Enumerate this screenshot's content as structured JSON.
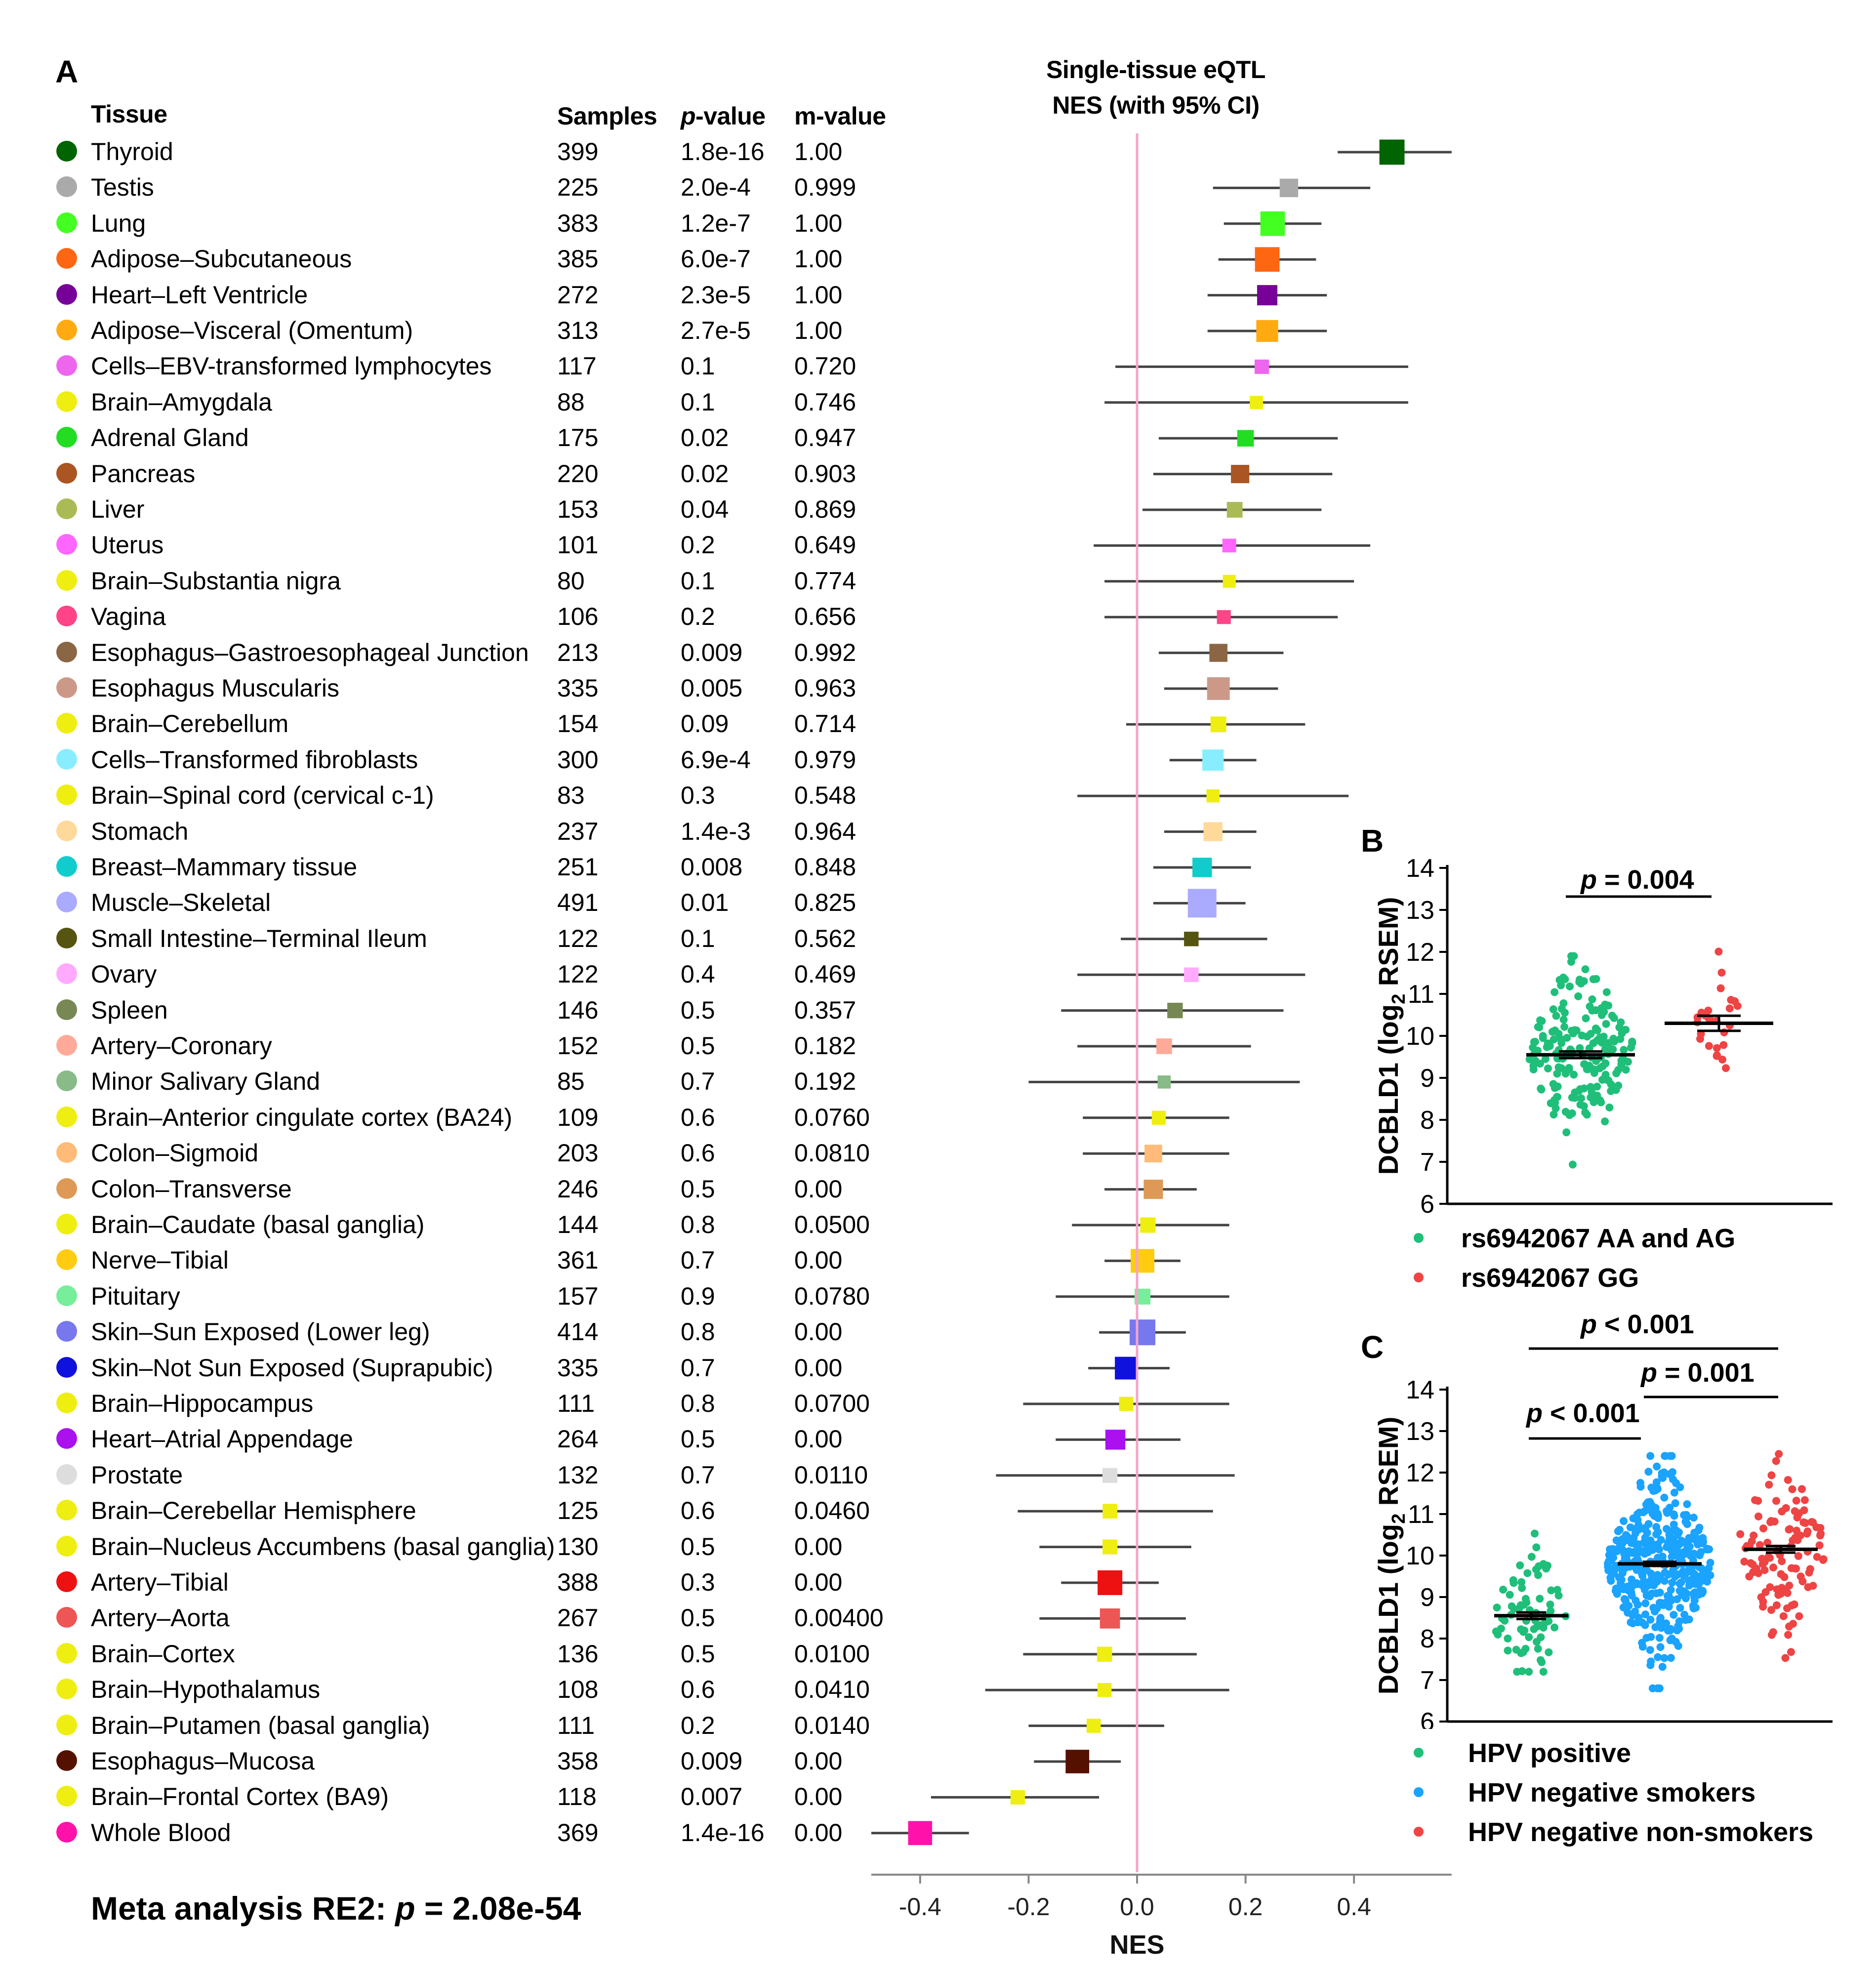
{
  "panelA": {
    "letter": "A",
    "headers": {
      "tissue": "Tissue",
      "samples": "Samples",
      "pvalue_italic": "p",
      "pvalue_rest": "-value",
      "mvalue": "m-value"
    },
    "plot_title_line1": "Single-tissue eQTL",
    "plot_title_line2": "NES (with 95% CI)",
    "meta_prefix": "Meta analysis RE2: ",
    "meta_p": "p",
    "meta_suffix": " = 2.08e-54"
  },
  "panelB": {
    "letter": "B",
    "p_italic": "p",
    "p_text": " = 0.004",
    "legend": [
      {
        "label": "rs6942067 AA and AG",
        "color": "#1fbf7a"
      },
      {
        "label": "rs6942067 GG",
        "color": "#ee4444"
      }
    ]
  },
  "panelC": {
    "letter": "C",
    "comparisons": [
      {
        "p": "p",
        "text": " < 0.001"
      },
      {
        "p": "p",
        "text": " = 0.001"
      },
      {
        "p": "p",
        "text": " < 0.001"
      }
    ],
    "legend": [
      {
        "label": "HPV positive",
        "color": "#1fbf7a"
      },
      {
        "label": "HPV negative smokers",
        "color": "#1aa3ff"
      },
      {
        "label": "HPV negative non-smokers",
        "color": "#ee4444"
      }
    ]
  },
  "chart_data": [
    {
      "type": "forest",
      "title": "Single-tissue eQTL NES (with 95% CI)",
      "xlabel": "NES",
      "xlim": [
        -0.49,
        0.58
      ],
      "xticks": [
        -0.4,
        -0.2,
        0.0,
        0.2,
        0.4
      ],
      "xtick_labels": [
        "-0.4",
        "-0.2",
        "0.0",
        "0.2",
        "0.4"
      ],
      "reference_line": 0.0,
      "rows": [
        {
          "tissue": "Thyroid",
          "samples": "399",
          "p": "1.8e-16",
          "m": "1.00",
          "color": "#006400",
          "nes": 0.47,
          "lo": 0.37,
          "hi": 0.58
        },
        {
          "tissue": "Testis",
          "samples": "225",
          "p": "2.0e-4",
          "m": "0.999",
          "color": "#aaaaaa",
          "nes": 0.28,
          "lo": 0.14,
          "hi": 0.43
        },
        {
          "tissue": "Lung",
          "samples": "383",
          "p": "1.2e-7",
          "m": "1.00",
          "color": "#44ff22",
          "nes": 0.25,
          "lo": 0.16,
          "hi": 0.34
        },
        {
          "tissue": "Adipose–Subcutaneous",
          "samples": "385",
          "p": "6.0e-7",
          "m": "1.00",
          "color": "#ff6611",
          "nes": 0.24,
          "lo": 0.15,
          "hi": 0.33
        },
        {
          "tissue": "Heart–Left Ventricle",
          "samples": "272",
          "p": "2.3e-5",
          "m": "1.00",
          "color": "#770099",
          "nes": 0.24,
          "lo": 0.13,
          "hi": 0.35
        },
        {
          "tissue": "Adipose–Visceral (Omentum)",
          "samples": "313",
          "p": "2.7e-5",
          "m": "1.00",
          "color": "#ffaa11",
          "nes": 0.24,
          "lo": 0.13,
          "hi": 0.35
        },
        {
          "tissue": "Cells–EBV-transformed lymphocytes",
          "samples": "117",
          "p": "0.1",
          "m": "0.720",
          "color": "#ee66ee",
          "nes": 0.23,
          "lo": -0.04,
          "hi": 0.5
        },
        {
          "tissue": "Brain–Amygdala",
          "samples": "88",
          "p": "0.1",
          "m": "0.746",
          "color": "#eeee11",
          "nes": 0.22,
          "lo": -0.06,
          "hi": 0.5
        },
        {
          "tissue": "Adrenal Gland",
          "samples": "175",
          "p": "0.02",
          "m": "0.947",
          "color": "#22dd22",
          "nes": 0.2,
          "lo": 0.04,
          "hi": 0.37
        },
        {
          "tissue": "Pancreas",
          "samples": "220",
          "p": "0.02",
          "m": "0.903",
          "color": "#aa5522",
          "nes": 0.19,
          "lo": 0.03,
          "hi": 0.36
        },
        {
          "tissue": "Liver",
          "samples": "153",
          "p": "0.04",
          "m": "0.869",
          "color": "#aabb55",
          "nes": 0.18,
          "lo": 0.01,
          "hi": 0.34
        },
        {
          "tissue": "Uterus",
          "samples": "101",
          "p": "0.2",
          "m": "0.649",
          "color": "#ff66ff",
          "nes": 0.17,
          "lo": -0.08,
          "hi": 0.43
        },
        {
          "tissue": "Brain–Substantia nigra",
          "samples": "80",
          "p": "0.1",
          "m": "0.774",
          "color": "#eeee11",
          "nes": 0.17,
          "lo": -0.06,
          "hi": 0.4
        },
        {
          "tissue": "Vagina",
          "samples": "106",
          "p": "0.2",
          "m": "0.656",
          "color": "#ff4488",
          "nes": 0.16,
          "lo": -0.06,
          "hi": 0.37
        },
        {
          "tissue": "Esophagus–Gastroesophageal Junction",
          "samples": "213",
          "p": "0.009",
          "m": "0.992",
          "color": "#8b6644",
          "nes": 0.15,
          "lo": 0.04,
          "hi": 0.27
        },
        {
          "tissue": "Esophagus Muscularis",
          "samples": "335",
          "p": "0.005",
          "m": "0.963",
          "color": "#cc9988",
          "nes": 0.15,
          "lo": 0.05,
          "hi": 0.26
        },
        {
          "tissue": "Brain–Cerebellum",
          "samples": "154",
          "p": "0.09",
          "m": "0.714",
          "color": "#eeee11",
          "nes": 0.15,
          "lo": -0.02,
          "hi": 0.31
        },
        {
          "tissue": "Cells–Transformed fibroblasts",
          "samples": "300",
          "p": "6.9e-4",
          "m": "0.979",
          "color": "#88eeff",
          "nes": 0.14,
          "lo": 0.06,
          "hi": 0.22
        },
        {
          "tissue": "Brain–Spinal cord (cervical c-1)",
          "samples": "83",
          "p": "0.3",
          "m": "0.548",
          "color": "#eeee11",
          "nes": 0.14,
          "lo": -0.11,
          "hi": 0.39
        },
        {
          "tissue": "Stomach",
          "samples": "237",
          "p": "1.4e-3",
          "m": "0.964",
          "color": "#ffd99a",
          "nes": 0.14,
          "lo": 0.05,
          "hi": 0.22
        },
        {
          "tissue": "Breast–Mammary tissue",
          "samples": "251",
          "p": "0.008",
          "m": "0.848",
          "color": "#11cccc",
          "nes": 0.12,
          "lo": 0.03,
          "hi": 0.21
        },
        {
          "tissue": "Muscle–Skeletal",
          "samples": "491",
          "p": "0.01",
          "m": "0.825",
          "color": "#aaaaff",
          "nes": 0.12,
          "lo": 0.03,
          "hi": 0.2
        },
        {
          "tissue": "Small Intestine–Terminal Ileum",
          "samples": "122",
          "p": "0.1",
          "m": "0.562",
          "color": "#555511",
          "nes": 0.1,
          "lo": -0.03,
          "hi": 0.24
        },
        {
          "tissue": "Ovary",
          "samples": "122",
          "p": "0.4",
          "m": "0.469",
          "color": "#ffaaff",
          "nes": 0.1,
          "lo": -0.11,
          "hi": 0.31
        },
        {
          "tissue": "Spleen",
          "samples": "146",
          "p": "0.5",
          "m": "0.357",
          "color": "#778855",
          "nes": 0.07,
          "lo": -0.14,
          "hi": 0.27
        },
        {
          "tissue": "Artery–Coronary",
          "samples": "152",
          "p": "0.5",
          "m": "0.182",
          "color": "#ffaa99",
          "nes": 0.05,
          "lo": -0.11,
          "hi": 0.21
        },
        {
          "tissue": "Minor Salivary Gland",
          "samples": "85",
          "p": "0.7",
          "m": "0.192",
          "color": "#88bb88",
          "nes": 0.05,
          "lo": -0.2,
          "hi": 0.3
        },
        {
          "tissue": "Brain–Anterior cingulate cortex (BA24)",
          "samples": "109",
          "p": "0.6",
          "m": "0.0760",
          "color": "#eeee11",
          "nes": 0.04,
          "lo": -0.1,
          "hi": 0.17
        },
        {
          "tissue": "Colon–Sigmoid",
          "samples": "203",
          "p": "0.6",
          "m": "0.0810",
          "color": "#ffbb77",
          "nes": 0.03,
          "lo": -0.1,
          "hi": 0.17
        },
        {
          "tissue": "Colon–Transverse",
          "samples": "246",
          "p": "0.5",
          "m": "0.00",
          "color": "#dd9955",
          "nes": 0.03,
          "lo": -0.06,
          "hi": 0.11
        },
        {
          "tissue": "Brain–Caudate (basal ganglia)",
          "samples": "144",
          "p": "0.8",
          "m": "0.0500",
          "color": "#eeee11",
          "nes": 0.02,
          "lo": -0.12,
          "hi": 0.17
        },
        {
          "tissue": "Nerve–Tibial",
          "samples": "361",
          "p": "0.7",
          "m": "0.00",
          "color": "#ffcc11",
          "nes": 0.01,
          "lo": -0.06,
          "hi": 0.08
        },
        {
          "tissue": "Pituitary",
          "samples": "157",
          "p": "0.9",
          "m": "0.0780",
          "color": "#77ee99",
          "nes": 0.01,
          "lo": -0.15,
          "hi": 0.17
        },
        {
          "tissue": "Skin–Sun Exposed (Lower leg)",
          "samples": "414",
          "p": "0.8",
          "m": "0.00",
          "color": "#7777ee",
          "nes": 0.01,
          "lo": -0.07,
          "hi": 0.09
        },
        {
          "tissue": "Skin–Not Sun Exposed (Suprapubic)",
          "samples": "335",
          "p": "0.7",
          "m": "0.00",
          "color": "#1111dd",
          "nes": -0.02,
          "lo": -0.09,
          "hi": 0.06
        },
        {
          "tissue": "Brain–Hippocampus",
          "samples": "111",
          "p": "0.8",
          "m": "0.0700",
          "color": "#eeee11",
          "nes": -0.02,
          "lo": -0.21,
          "hi": 0.17
        },
        {
          "tissue": "Heart–Atrial Appendage",
          "samples": "264",
          "p": "0.5",
          "m": "0.00",
          "color": "#aa11ee",
          "nes": -0.04,
          "lo": -0.15,
          "hi": 0.08
        },
        {
          "tissue": "Prostate",
          "samples": "132",
          "p": "0.7",
          "m": "0.0110",
          "color": "#dddddd",
          "nes": -0.05,
          "lo": -0.26,
          "hi": 0.18
        },
        {
          "tissue": "Brain–Cerebellar Hemisphere",
          "samples": "125",
          "p": "0.6",
          "m": "0.0460",
          "color": "#eeee11",
          "nes": -0.05,
          "lo": -0.22,
          "hi": 0.14
        },
        {
          "tissue": "Brain–Nucleus Accumbens (basal ganglia)",
          "samples": "130",
          "p": "0.5",
          "m": "0.00",
          "color": "#eeee11",
          "nes": -0.05,
          "lo": -0.18,
          "hi": 0.1
        },
        {
          "tissue": "Artery–Tibial",
          "samples": "388",
          "p": "0.3",
          "m": "0.00",
          "color": "#ee1111",
          "nes": -0.05,
          "lo": -0.14,
          "hi": 0.04
        },
        {
          "tissue": "Artery–Aorta",
          "samples": "267",
          "p": "0.5",
          "m": "0.00400",
          "color": "#ee5555",
          "nes": -0.05,
          "lo": -0.18,
          "hi": 0.09
        },
        {
          "tissue": "Brain–Cortex",
          "samples": "136",
          "p": "0.5",
          "m": "0.0100",
          "color": "#eeee11",
          "nes": -0.06,
          "lo": -0.21,
          "hi": 0.11
        },
        {
          "tissue": "Brain–Hypothalamus",
          "samples": "108",
          "p": "0.6",
          "m": "0.0410",
          "color": "#eeee11",
          "nes": -0.06,
          "lo": -0.28,
          "hi": 0.17
        },
        {
          "tissue": "Brain–Putamen (basal ganglia)",
          "samples": "111",
          "p": "0.2",
          "m": "0.0140",
          "color": "#eeee11",
          "nes": -0.08,
          "lo": -0.2,
          "hi": 0.05
        },
        {
          "tissue": "Esophagus–Mucosa",
          "samples": "358",
          "p": "0.009",
          "m": "0.00",
          "color": "#551100",
          "nes": -0.11,
          "lo": -0.19,
          "hi": -0.03
        },
        {
          "tissue": "Brain–Frontal Cortex (BA9)",
          "samples": "118",
          "p": "0.007",
          "m": "0.00",
          "color": "#eeee11",
          "nes": -0.22,
          "lo": -0.38,
          "hi": -0.07
        },
        {
          "tissue": "Whole Blood",
          "samples": "369",
          "p": "1.4e-16",
          "m": "0.00",
          "color": "#ff11aa",
          "nes": -0.4,
          "lo": -0.49,
          "hi": -0.31
        }
      ]
    },
    {
      "type": "scatter",
      "panel": "B",
      "ylabel": "DCBLD1 (log2 RSEM)",
      "ylim": [
        6,
        14
      ],
      "yticks": [
        6,
        7,
        8,
        9,
        10,
        11,
        12,
        13,
        14
      ],
      "groups": [
        {
          "name": "rs6942067 AA and AG",
          "color": "#1fbf7a",
          "mean": 9.55,
          "sem": 0.08,
          "min": 6.8,
          "max": 11.9,
          "n": 190
        },
        {
          "name": "rs6942067 GG",
          "color": "#ee4444",
          "mean": 10.3,
          "sem": 0.18,
          "min": 8.9,
          "max": 12.4,
          "n": 26
        }
      ],
      "annotation": "p = 0.004"
    },
    {
      "type": "scatter",
      "panel": "C",
      "ylabel": "DCBLD1 (log2 RSEM)",
      "ylim": [
        6,
        14
      ],
      "yticks": [
        6,
        7,
        8,
        9,
        10,
        11,
        12,
        13,
        14
      ],
      "groups": [
        {
          "name": "HPV positive",
          "color": "#1fbf7a",
          "mean": 8.55,
          "sem": 0.08,
          "min": 7.2,
          "max": 10.8,
          "n": 72
        },
        {
          "name": "HPV negative smokers",
          "color": "#1aa3ff",
          "mean": 9.8,
          "sem": 0.05,
          "min": 6.8,
          "max": 12.4,
          "n": 400
        },
        {
          "name": "HPV negative non-smokers",
          "color": "#ee4444",
          "mean": 10.15,
          "sem": 0.08,
          "min": 7.3,
          "max": 12.5,
          "n": 110
        }
      ],
      "annotations": [
        "p < 0.001",
        "p = 0.001",
        "p < 0.001"
      ]
    }
  ]
}
